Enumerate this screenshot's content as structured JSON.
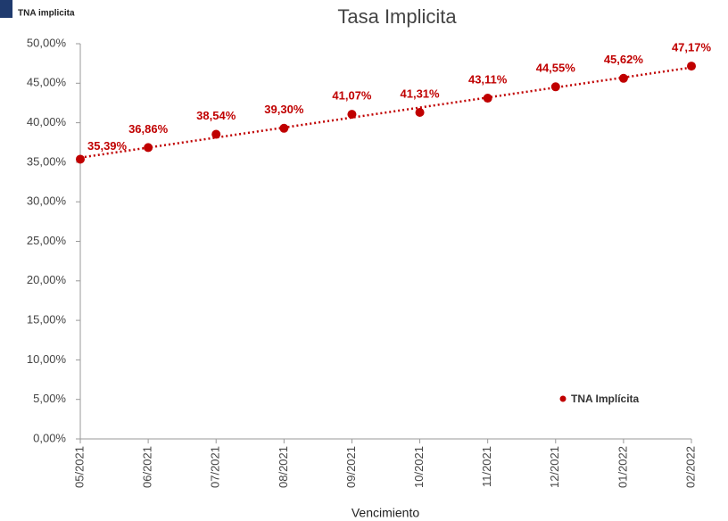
{
  "corner_label": "TNA implicita",
  "chart_data": {
    "type": "line",
    "title": "Tasa Implicita",
    "x_label": "Vencimiento",
    "categories": [
      "05/2021",
      "06/2021",
      "07/2021",
      "08/2021",
      "09/2021",
      "10/2021",
      "11/2021",
      "12/2021",
      "01/2022",
      "02/2022"
    ],
    "series": [
      {
        "name": "TNA Implícita",
        "color": "#c00000",
        "values": [
          35.39,
          36.86,
          38.54,
          39.3,
          41.07,
          41.31,
          43.11,
          44.55,
          45.62,
          47.17
        ],
        "value_labels": [
          "35,39%",
          "36,86%",
          "38,54%",
          "39,30%",
          "41,07%",
          "41,31%",
          "43,11%",
          "44,55%",
          "45,62%",
          "47,17%"
        ]
      }
    ],
    "ylim": [
      0,
      50
    ],
    "yticks": [
      {
        "value": 0,
        "label": "0,00%"
      },
      {
        "value": 5,
        "label": "5,00%"
      },
      {
        "value": 10,
        "label": "10,00%"
      },
      {
        "value": 15,
        "label": "15,00%"
      },
      {
        "value": 20,
        "label": "20,00%"
      },
      {
        "value": 25,
        "label": "25,00%"
      },
      {
        "value": 30,
        "label": "30,00%"
      },
      {
        "value": 35,
        "label": "35,00%"
      },
      {
        "value": 40,
        "label": "40,00%"
      },
      {
        "value": 45,
        "label": "45,00%"
      },
      {
        "value": 50,
        "label": "50,00%"
      }
    ],
    "trendline": true,
    "legend": "lower right"
  }
}
